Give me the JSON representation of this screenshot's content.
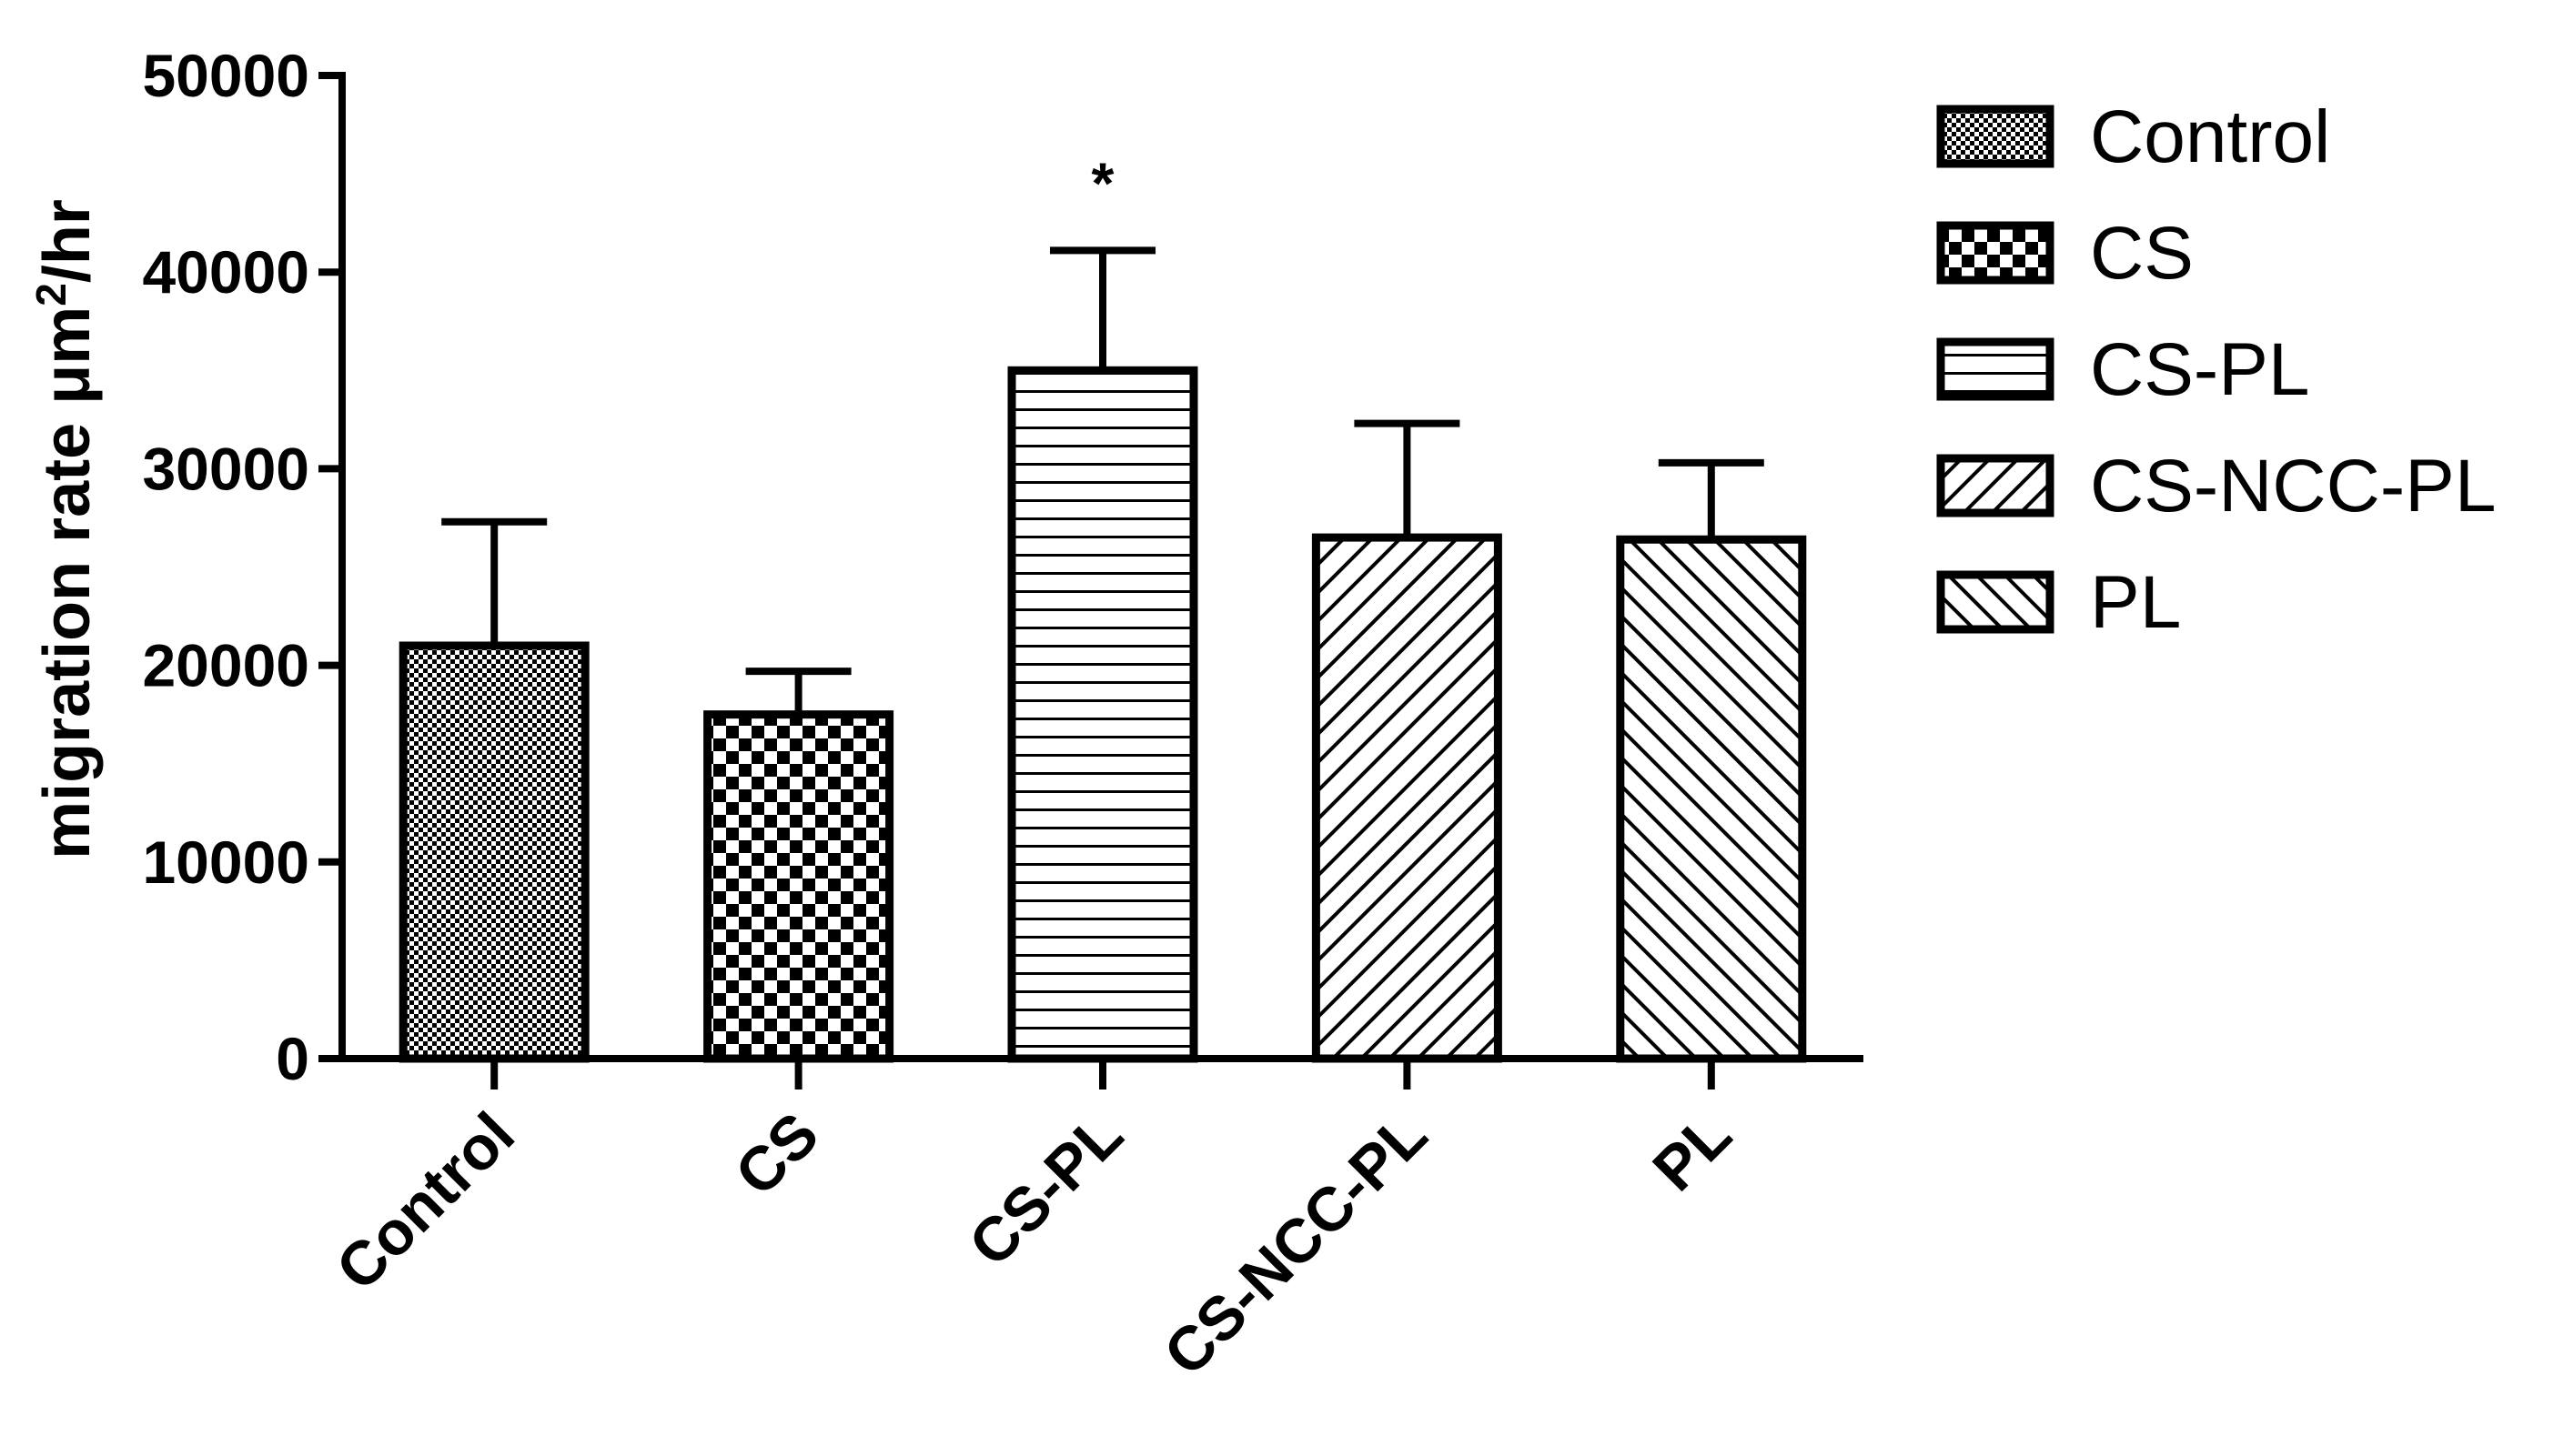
{
  "chart_data": {
    "type": "bar",
    "categories": [
      "Control",
      "CS",
      "CS-PL",
      "CS-NCC-PL",
      "PL"
    ],
    "values": [
      21000,
      17500,
      35000,
      26500,
      26400
    ],
    "errors": [
      6300,
      2200,
      6100,
      5800,
      3900
    ],
    "fill_patterns": [
      "fine-checker",
      "checker",
      "horizontal-lines",
      "diagonal-up",
      "diagonal-down"
    ],
    "significance": [
      "",
      "",
      "*",
      "",
      ""
    ],
    "ylabel_main": "migration rate μm",
    "ylabel_sup": "2",
    "ylabel_tail": "/hr",
    "ylim": [
      0,
      50000
    ],
    "yticks": [
      0,
      10000,
      20000,
      30000,
      40000,
      50000
    ],
    "ytick_labels": [
      "0",
      "10000",
      "20000",
      "30000",
      "40000",
      "50000"
    ],
    "grid": false,
    "legend_position": "right",
    "legend": [
      "Control",
      "CS",
      "CS-PL",
      "CS-NCC-PL",
      "PL"
    ],
    "colors": {
      "stroke": "#000000",
      "fill": "#ffffff"
    }
  }
}
